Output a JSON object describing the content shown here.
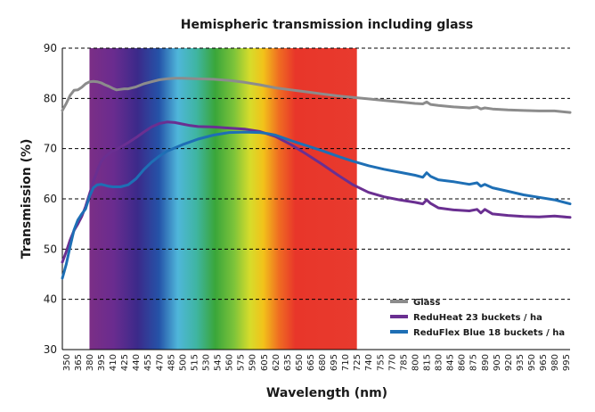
{
  "chart_data": {
    "type": "line",
    "title": "Hemispheric transmission including glass",
    "xlabel": "Wavelength (nm)",
    "ylabel": "Transmission (%)",
    "xlim": [
      345,
      1000
    ],
    "ylim": [
      30,
      90
    ],
    "yticks": [
      30,
      40,
      50,
      60,
      70,
      80,
      90
    ],
    "xticks": [
      350,
      365,
      380,
      395,
      410,
      425,
      440,
      455,
      470,
      485,
      500,
      515,
      530,
      545,
      560,
      575,
      590,
      605,
      620,
      635,
      650,
      665,
      680,
      695,
      710,
      725,
      740,
      755,
      770,
      785,
      800,
      815,
      830,
      845,
      860,
      875,
      890,
      905,
      920,
      935,
      950,
      965,
      980,
      995
    ],
    "grid": "horizontal dashed",
    "legend_position": "bottom-right",
    "spectrum_band": [
      380,
      725
    ],
    "series": [
      {
        "name": "Glass",
        "color": "#8c8c8c",
        "x": [
          345,
          350,
          355,
          360,
          365,
          370,
          375,
          380,
          385,
          390,
          395,
          400,
          405,
          410,
          415,
          420,
          425,
          430,
          440,
          450,
          460,
          470,
          480,
          490,
          500,
          520,
          540,
          560,
          580,
          600,
          620,
          640,
          660,
          680,
          700,
          720,
          740,
          760,
          780,
          800,
          810,
          815,
          820,
          830,
          850,
          870,
          880,
          885,
          890,
          900,
          920,
          940,
          960,
          980,
          1000
        ],
        "y": [
          77.6,
          79.0,
          80.6,
          81.6,
          81.7,
          82.2,
          82.9,
          83.3,
          83.4,
          83.3,
          83.1,
          82.7,
          82.4,
          82.0,
          81.7,
          81.8,
          81.9,
          81.9,
          82.3,
          82.9,
          83.3,
          83.7,
          83.9,
          84.0,
          84.0,
          83.9,
          83.8,
          83.6,
          83.2,
          82.7,
          82.1,
          81.7,
          81.3,
          80.9,
          80.5,
          80.2,
          79.9,
          79.6,
          79.3,
          79.0,
          78.9,
          79.3,
          78.8,
          78.6,
          78.3,
          78.1,
          78.3,
          77.9,
          78.1,
          77.9,
          77.7,
          77.6,
          77.5,
          77.5,
          77.2
        ]
      },
      {
        "name": "ReduHeat 23 buckets / ha",
        "color": "#6a2f91",
        "x": [
          345,
          350,
          355,
          360,
          365,
          370,
          375,
          380,
          385,
          390,
          395,
          400,
          405,
          410,
          420,
          430,
          440,
          450,
          460,
          470,
          480,
          490,
          500,
          510,
          520,
          540,
          560,
          580,
          600,
          620,
          640,
          660,
          680,
          700,
          720,
          740,
          760,
          780,
          800,
          810,
          815,
          820,
          830,
          850,
          870,
          880,
          885,
          890,
          900,
          920,
          940,
          960,
          980,
          1000
        ],
        "y": [
          47.4,
          49.5,
          51.8,
          53.7,
          55.0,
          56.5,
          58.5,
          61.0,
          63.4,
          65.6,
          67.4,
          68.4,
          69.0,
          69.5,
          70.3,
          71.2,
          72.2,
          73.3,
          74.3,
          75.0,
          75.3,
          75.2,
          74.9,
          74.6,
          74.4,
          74.3,
          74.1,
          73.9,
          73.4,
          72.4,
          70.8,
          68.9,
          66.9,
          64.8,
          62.8,
          61.3,
          60.4,
          59.8,
          59.3,
          59.0,
          59.8,
          59.1,
          58.2,
          57.8,
          57.6,
          57.9,
          57.2,
          57.9,
          57.0,
          56.7,
          56.5,
          56.4,
          56.6,
          56.3
        ]
      },
      {
        "name": "ReduFlex Blue 18 buckets / ha",
        "color": "#1e6fb5",
        "x": [
          345,
          350,
          355,
          360,
          365,
          370,
          375,
          380,
          385,
          390,
          395,
          400,
          405,
          410,
          420,
          430,
          440,
          450,
          460,
          470,
          480,
          500,
          520,
          540,
          560,
          580,
          600,
          610,
          620,
          640,
          660,
          680,
          700,
          720,
          740,
          760,
          780,
          800,
          810,
          815,
          820,
          830,
          850,
          870,
          880,
          885,
          890,
          900,
          920,
          940,
          960,
          980,
          1000
        ],
        "y": [
          44.2,
          47.0,
          50.5,
          53.8,
          55.8,
          57.0,
          58.0,
          60.5,
          62.2,
          62.8,
          62.9,
          62.7,
          62.5,
          62.4,
          62.4,
          62.8,
          64.0,
          65.8,
          67.3,
          68.5,
          69.5,
          70.8,
          71.9,
          72.7,
          73.2,
          73.3,
          73.2,
          73.0,
          72.7,
          71.6,
          70.6,
          69.6,
          68.5,
          67.5,
          66.6,
          65.9,
          65.3,
          64.7,
          64.3,
          65.2,
          64.5,
          63.8,
          63.4,
          62.9,
          63.2,
          62.5,
          62.9,
          62.2,
          61.5,
          60.8,
          60.3,
          59.8,
          59.0
        ]
      }
    ]
  }
}
